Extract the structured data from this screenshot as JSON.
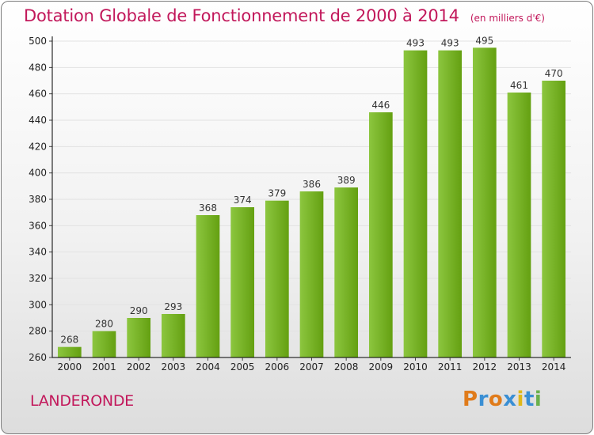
{
  "title": "Dotation Globale de Fonctionnement de 2000 à 2014",
  "unit_note": "(en milliers d'€)",
  "commune": "LANDERONDE",
  "logo": {
    "letters": [
      "P",
      "r",
      "o",
      "x",
      "i",
      "t",
      "i"
    ],
    "colors": [
      "#e07b1a",
      "#3a8fd4",
      "#e07b1a",
      "#3a8fd4",
      "#e0b81a",
      "#3a8fd4",
      "#6ab04c"
    ]
  },
  "colors": {
    "bar": "#8cc63f",
    "bar_dark": "#64a011",
    "grid": "#e2e2e2",
    "axis": "#000000",
    "title": "#c2185b"
  },
  "chart_data": {
    "type": "bar",
    "title": "Dotation Globale de Fonctionnement de 2000 à 2014",
    "xlabel": "",
    "ylabel": "",
    "categories": [
      "2000",
      "2001",
      "2002",
      "2003",
      "2004",
      "2005",
      "2006",
      "2007",
      "2008",
      "2009",
      "2010",
      "2011",
      "2012",
      "2013",
      "2014"
    ],
    "values": [
      268,
      280,
      290,
      293,
      368,
      374,
      379,
      386,
      389,
      446,
      493,
      493,
      495,
      461,
      470
    ],
    "ylim": [
      260,
      500
    ],
    "yticks": [
      260,
      280,
      300,
      320,
      340,
      360,
      380,
      400,
      420,
      440,
      460,
      480,
      500
    ],
    "grid": true,
    "legend": "none"
  }
}
